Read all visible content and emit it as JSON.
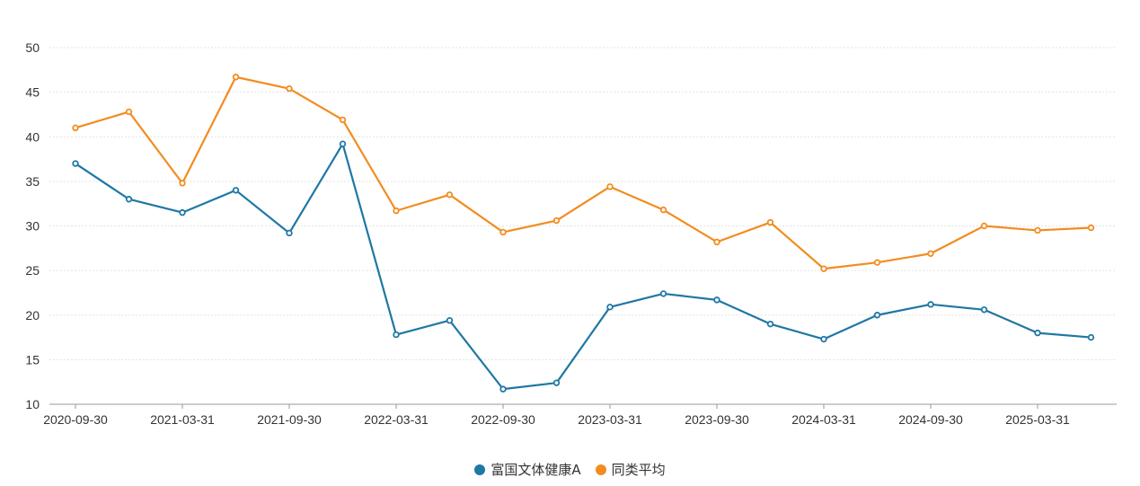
{
  "chart_data": {
    "type": "line",
    "x": [
      "2020-09-30",
      "2020-12-31",
      "2021-03-31",
      "2021-06-30",
      "2021-09-30",
      "2021-12-31",
      "2022-03-31",
      "2022-06-30",
      "2022-09-30",
      "2022-12-31",
      "2023-03-31",
      "2023-06-30",
      "2023-09-30",
      "2023-12-31",
      "2024-03-31",
      "2024-06-30",
      "2024-09-30",
      "2024-12-31",
      "2025-03-31",
      "2025-06-30"
    ],
    "x_tick_labels": [
      "2020-09-30",
      "2021-03-31",
      "2021-09-30",
      "2022-03-31",
      "2022-09-30",
      "2023-03-31",
      "2023-09-30",
      "2024-03-31",
      "2024-09-30",
      "2025-03-31"
    ],
    "series": [
      {
        "name": "富国文体健康A",
        "color": "#1f77a4",
        "values": [
          37.0,
          33.0,
          31.5,
          34.0,
          29.2,
          39.2,
          17.8,
          19.4,
          11.7,
          12.4,
          20.9,
          22.4,
          21.7,
          19.0,
          17.3,
          20.0,
          21.2,
          20.6,
          18.0,
          17.5
        ]
      },
      {
        "name": "同类平均",
        "color": "#f28c1e",
        "values": [
          41.0,
          42.8,
          34.8,
          46.7,
          45.4,
          41.9,
          31.7,
          33.5,
          29.3,
          30.6,
          34.4,
          31.8,
          28.2,
          30.4,
          25.2,
          25.9,
          26.9,
          30.0,
          29.5,
          29.8
        ]
      }
    ],
    "ylim": [
      10,
      50
    ],
    "y_ticks": [
      10,
      15,
      20,
      25,
      30,
      35,
      40,
      45,
      50
    ],
    "grid": true,
    "legend_position": "bottom-center",
    "title": "",
    "xlabel": "",
    "ylabel": ""
  }
}
